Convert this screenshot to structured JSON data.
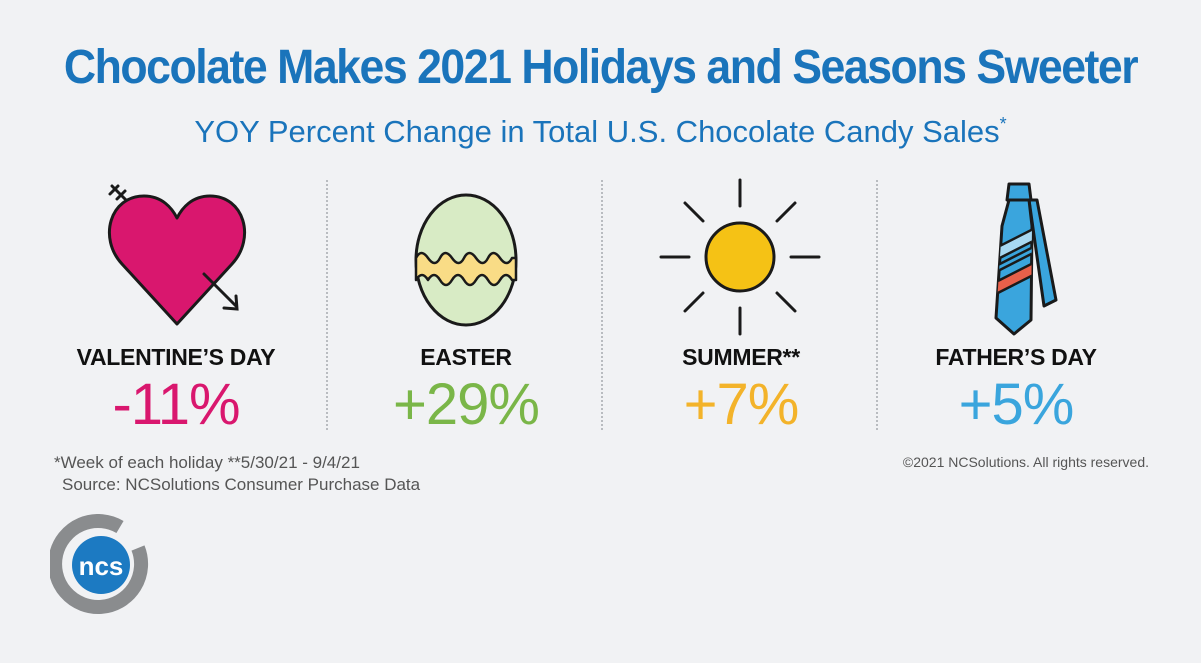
{
  "chart_data": {
    "type": "table",
    "title": "Chocolate Makes 2021 Holidays and Seasons Sweeter",
    "subtitle": "YOY Percent Change in Total U.S. Chocolate Candy Sales",
    "subtitle_mark": "*",
    "categories": [
      "VALENTINE’S DAY",
      "EASTER",
      "SUMMER**",
      "FATHER’S DAY"
    ],
    "values": [
      -11,
      29,
      7,
      5
    ],
    "value_labels": [
      "-11%",
      "+29%",
      "+7%",
      "+5%"
    ],
    "colors": [
      "#d9176e",
      "#7ab648",
      "#f3b32a",
      "#3aa5dd"
    ],
    "icons": [
      "heart-arrow-icon",
      "easter-egg-icon",
      "sun-icon",
      "necktie-icon"
    ]
  },
  "footnotes": {
    "line1": "*Week of each holiday   **5/30/21 - 9/4/21",
    "line2": "Source: NCSolutions Consumer Purchase Data"
  },
  "copyright": "©2021 NCSolutions. All rights reserved.",
  "logo_text": "ncs",
  "colors": {
    "title": "#1a74bb",
    "logo_blue": "#1c7ac2",
    "logo_ring": "#8a8c8e",
    "background": "#f1f2f4"
  }
}
